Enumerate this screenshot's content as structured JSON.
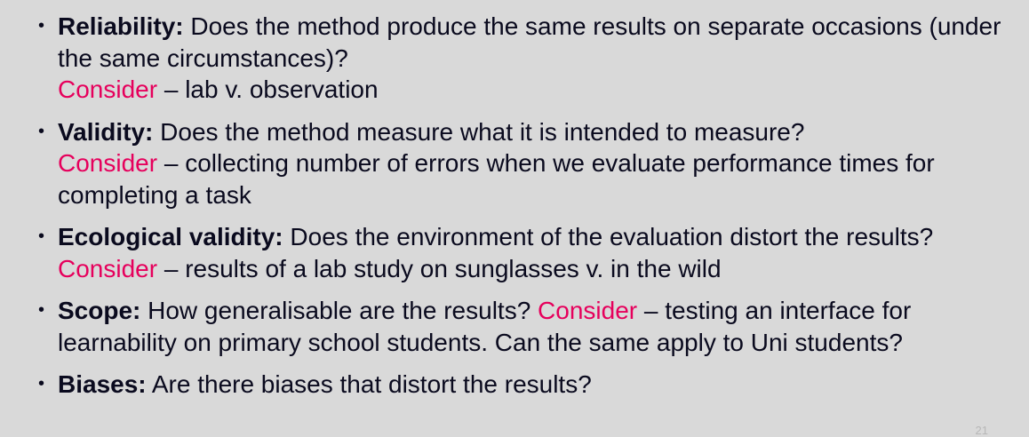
{
  "slide": {
    "bullets": [
      {
        "term": "Reliability:",
        "text": " Does the method produce the same results on separate occasions (under the same circumstances)?",
        "consider": "Consider",
        "consider_text": " – lab v. observation"
      },
      {
        "term": "Validity:",
        "text": " Does the method measure what it is intended to measure?",
        "consider": "Consider",
        "consider_text": " – collecting number of errors when we evaluate performance times for completing a task"
      },
      {
        "term": "Ecological validity:",
        "text": " Does the environment of the evaluation distort the results? ",
        "consider": "Consider",
        "consider_text": " – results of a lab study on sunglasses v. in the wild"
      },
      {
        "term": "Scope:",
        "text": " How generalisable are the results? ",
        "consider": "Consider",
        "consider_text": " – testing an interface for learnability on primary school students. Can the same apply to Uni students?"
      },
      {
        "term": "Biases:",
        "text": " Are there biases that distort the results?"
      }
    ],
    "page_number": "21",
    "colors": {
      "background": "#d9d9d9",
      "text": "#0a0a1e",
      "accent": "#e6005c"
    }
  }
}
